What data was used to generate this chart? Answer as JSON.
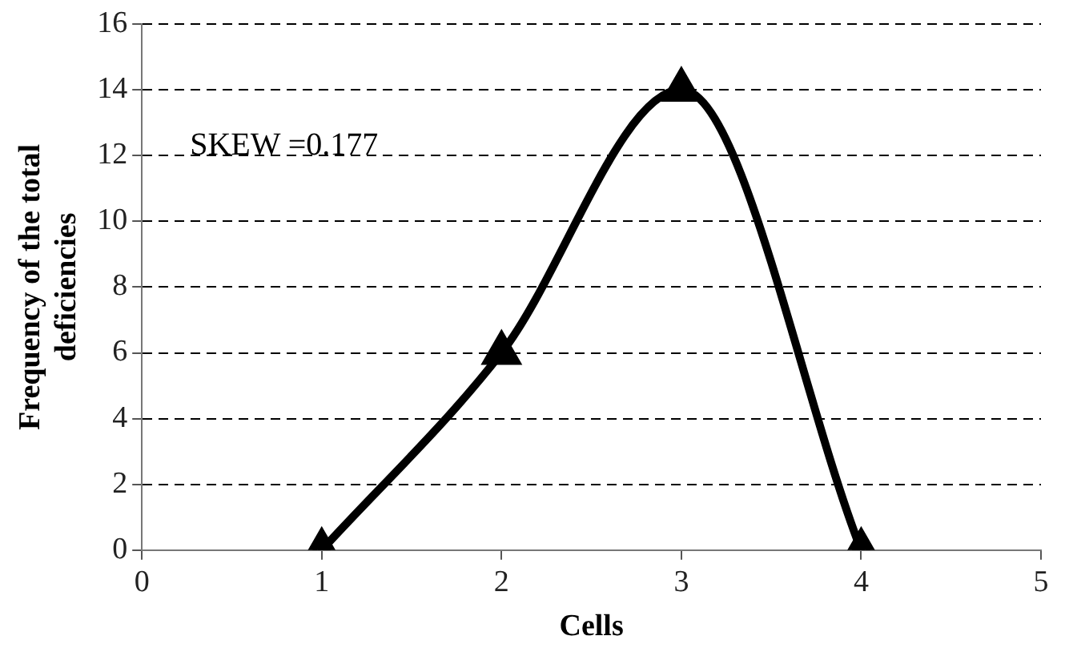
{
  "chart_data": {
    "type": "line",
    "xlabel": "Cells",
    "ylabel": "Frequency of the total deficiencies",
    "x": [
      1,
      2,
      3,
      4
    ],
    "series": [
      {
        "color": "#000000",
        "values": [
          0,
          6,
          14,
          0
        ]
      }
    ],
    "xlim": [
      0,
      5
    ],
    "xticks": [
      0,
      1,
      2,
      3,
      4,
      5
    ],
    "ylim": [
      0,
      16
    ],
    "yticks": [
      0,
      2,
      4,
      6,
      8,
      10,
      12,
      14,
      16
    ],
    "grid": "y",
    "legend": false,
    "marker": "triangle",
    "line_style": "solid",
    "annotations": [
      "SKEW =0.177"
    ]
  }
}
